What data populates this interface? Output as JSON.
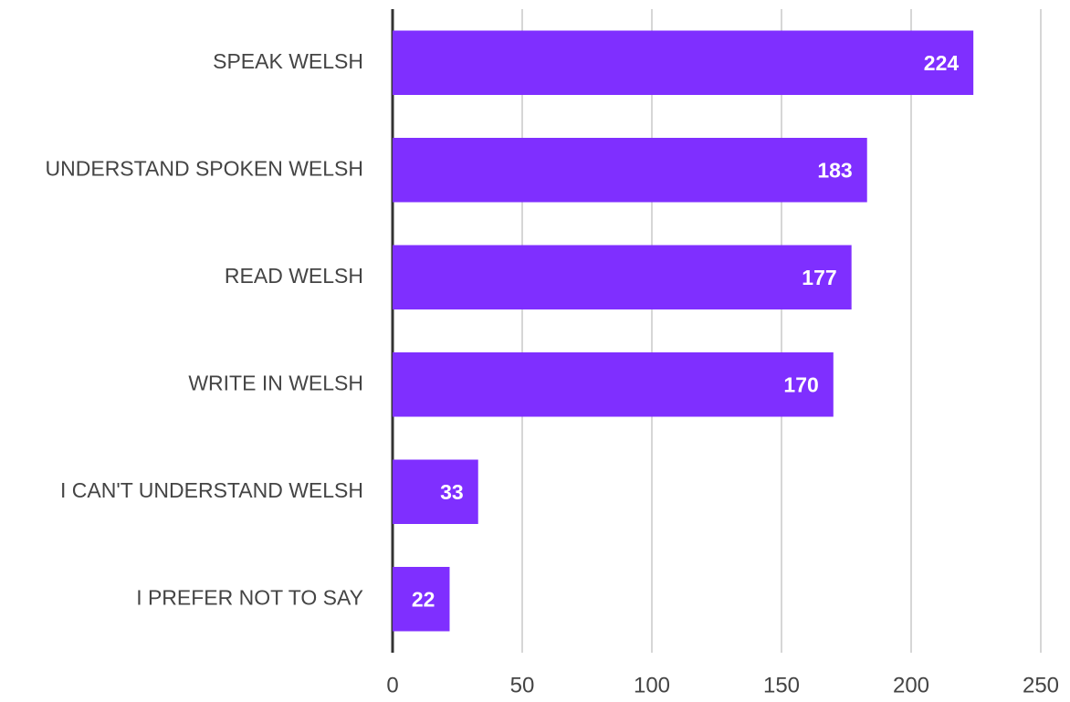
{
  "chart_data": {
    "type": "bar",
    "orientation": "horizontal",
    "categories": [
      "SPEAK WELSH",
      "UNDERSTAND SPOKEN WELSH",
      "READ WELSH",
      "WRITE IN WELSH",
      "I CAN'T UNDERSTAND WELSH",
      "I PREFER NOT TO SAY"
    ],
    "values": [
      224,
      183,
      177,
      170,
      33,
      22
    ],
    "color": "#7f2fff",
    "xlim": [
      0,
      250
    ],
    "xticks": [
      0,
      50,
      100,
      150,
      200,
      250
    ],
    "grid": true
  }
}
